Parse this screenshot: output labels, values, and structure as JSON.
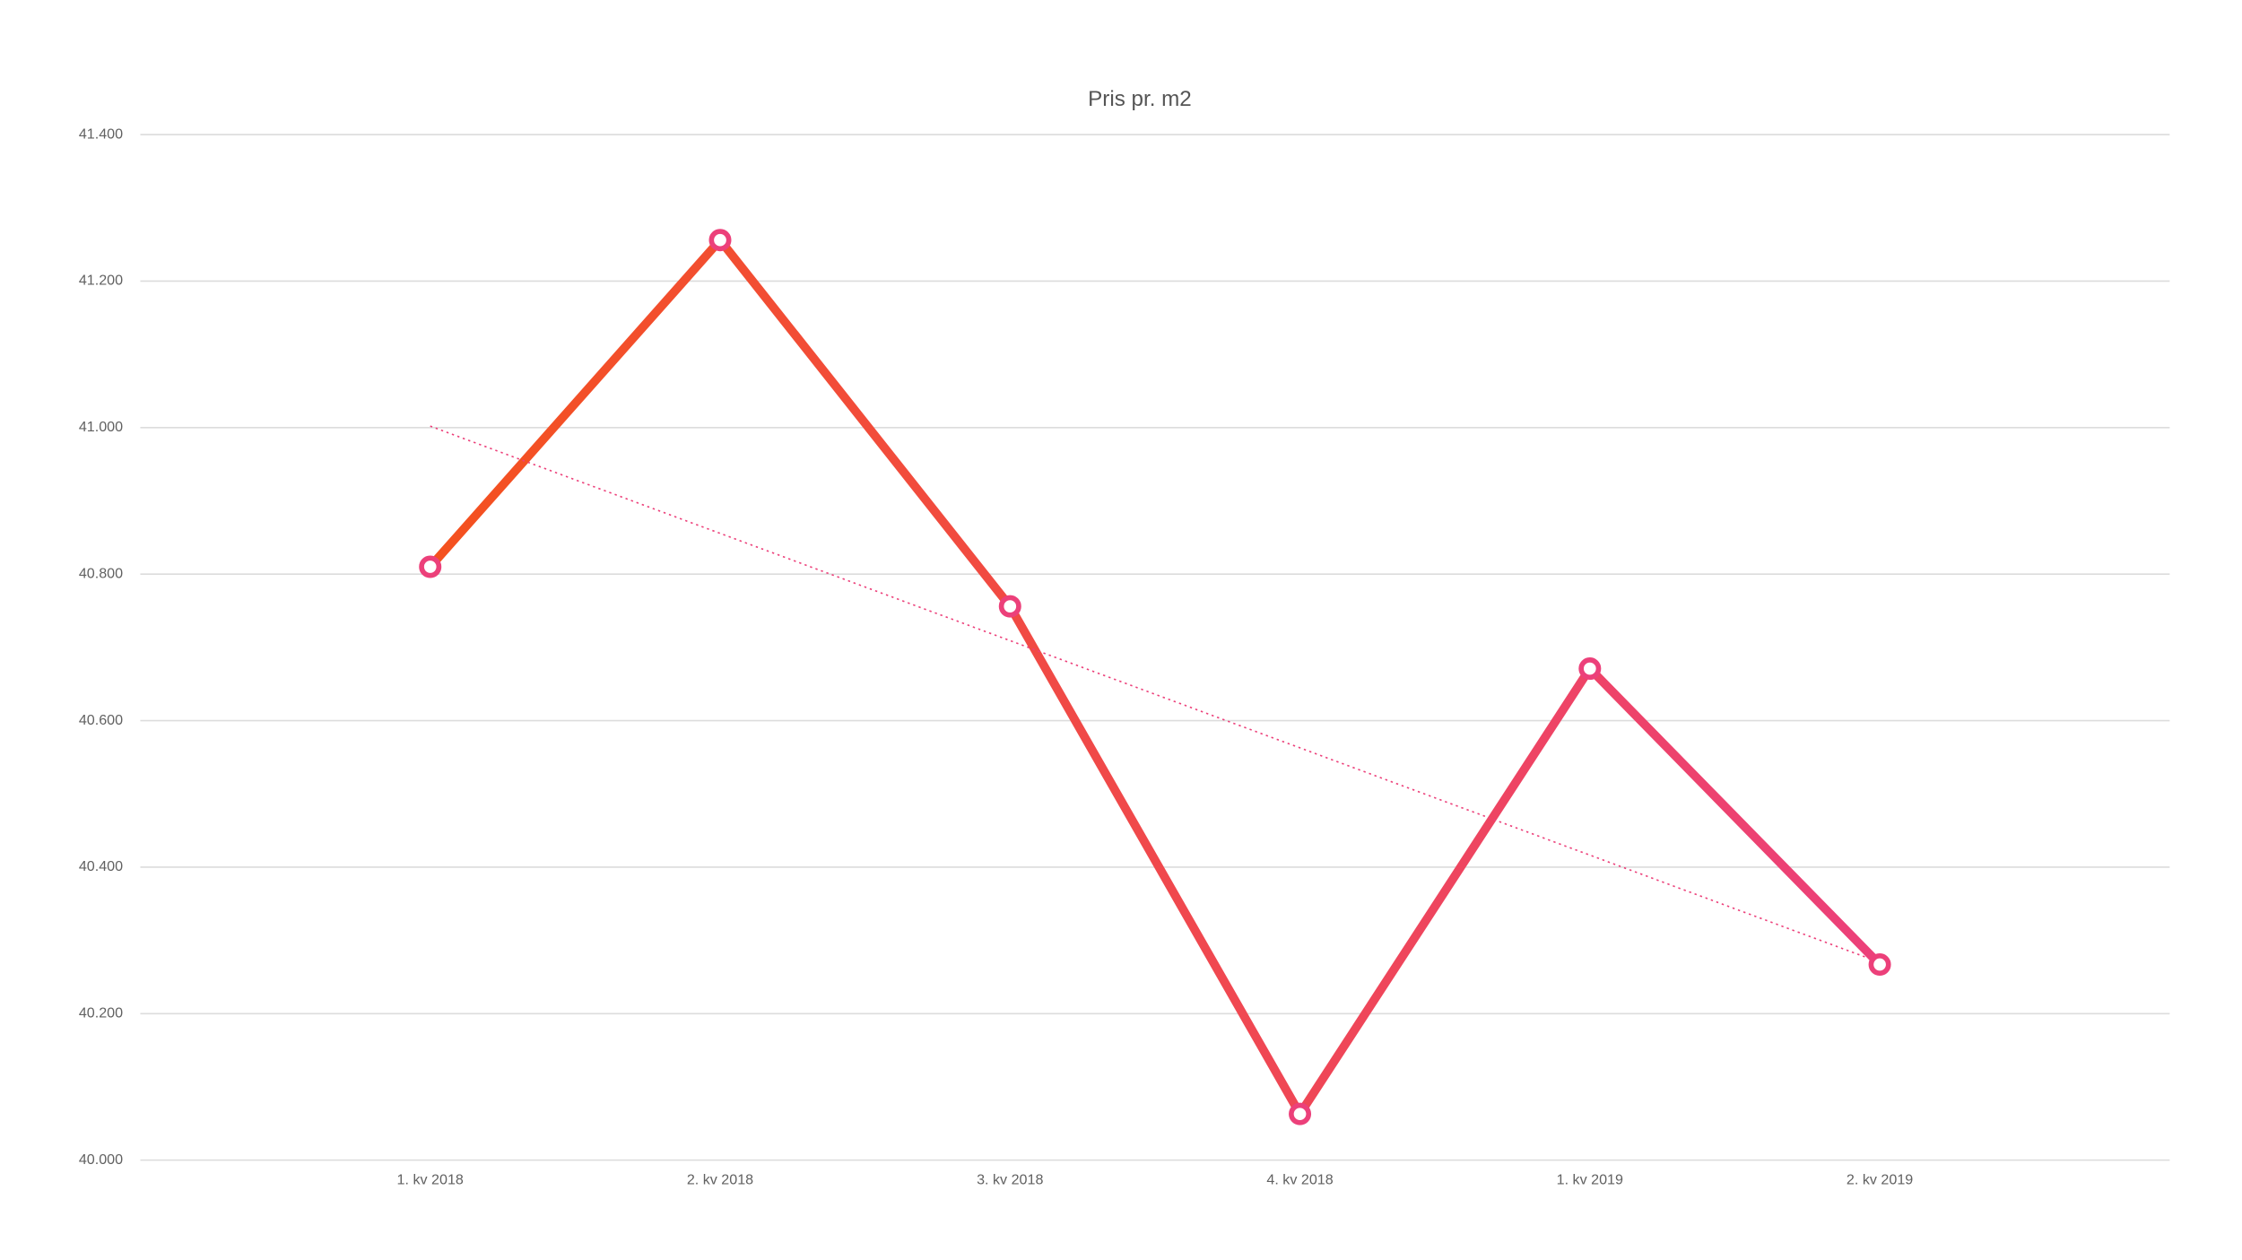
{
  "chart_data": {
    "type": "line",
    "title": "Pris pr. m2",
    "categories": [
      "1. kv 2018",
      "2. kv 2018",
      "3. kv 2018",
      "4. kv 2018",
      "1. kv 2019",
      "2. kv 2019"
    ],
    "series": [
      {
        "values": [
          40810,
          41256,
          40756,
          40063,
          40671,
          40267
        ],
        "color": [
          "#f4511e",
          "#ec407a"
        ],
        "marker_color": "#ec407a"
      }
    ],
    "trend": {
      "values": [
        41002,
        40270
      ],
      "color": "#ec407a",
      "style": "dotted"
    },
    "ylim": [
      40000,
      41400
    ],
    "yticks": [
      {
        "value": 40000,
        "label": "40.000"
      },
      {
        "value": 40200,
        "label": "40.200"
      },
      {
        "value": 40400,
        "label": "40.400"
      },
      {
        "value": 40600,
        "label": "40.600"
      },
      {
        "value": 40800,
        "label": "40.800"
      },
      {
        "value": 41000,
        "label": "41.000"
      },
      {
        "value": 41200,
        "label": "41.200"
      },
      {
        "value": 41400,
        "label": "41.400"
      }
    ],
    "grid": true
  }
}
